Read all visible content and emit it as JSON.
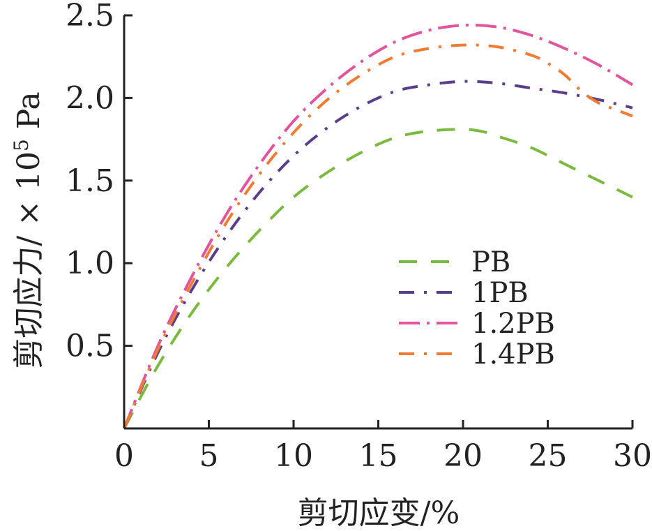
{
  "chart_data": {
    "type": "line",
    "xlabel": "剪切应变/%",
    "ylabel_main": "剪切应力/ × 10",
    "ylabel_exp": "5",
    "ylabel_unit": " Pa",
    "xlim": [
      0,
      30
    ],
    "ylim": [
      0,
      2.5
    ],
    "x_ticks": [
      "0",
      "5",
      "10",
      "15",
      "20",
      "25",
      "30"
    ],
    "y_ticks": [
      "0.5",
      "1.0",
      "1.5",
      "2.0",
      "2.5"
    ],
    "grid": false,
    "legend_position": "center-right",
    "series": [
      {
        "name": "PB",
        "color": "#7cba3f",
        "dash": "long-dash",
        "x": [
          0,
          2,
          4,
          6,
          8,
          10,
          12,
          14,
          16,
          18,
          20,
          21,
          22,
          24,
          26,
          28,
          30
        ],
        "y": [
          0,
          0.38,
          0.7,
          0.97,
          1.2,
          1.4,
          1.55,
          1.67,
          1.76,
          1.8,
          1.81,
          1.8,
          1.77,
          1.7,
          1.6,
          1.5,
          1.4
        ]
      },
      {
        "name": "1PB",
        "color": "#5a3e8c",
        "dash": "dash-dot",
        "x": [
          0,
          2,
          4,
          6,
          8,
          10,
          12,
          14,
          16,
          18,
          20,
          22,
          24,
          26,
          28,
          30
        ],
        "y": [
          0,
          0.46,
          0.84,
          1.16,
          1.43,
          1.65,
          1.82,
          1.95,
          2.04,
          2.08,
          2.1,
          2.09,
          2.06,
          2.03,
          1.99,
          1.94
        ]
      },
      {
        "name": "1.2PB",
        "color": "#e0559b",
        "dash": "long-dash-dot",
        "x": [
          0,
          2,
          4,
          6,
          8,
          10,
          12,
          14,
          16,
          18,
          20,
          22,
          24,
          26,
          28,
          30
        ],
        "y": [
          0,
          0.5,
          0.92,
          1.29,
          1.6,
          1.86,
          2.06,
          2.22,
          2.34,
          2.41,
          2.44,
          2.43,
          2.38,
          2.3,
          2.2,
          2.08
        ]
      },
      {
        "name": "1.4PB",
        "color": "#f07b32",
        "dash": "dash-dot",
        "x": [
          0,
          2,
          4,
          6,
          8,
          10,
          12,
          14,
          16,
          18,
          20,
          22,
          24,
          25,
          26,
          27,
          28,
          29,
          30
        ],
        "y": [
          0,
          0.48,
          0.88,
          1.24,
          1.54,
          1.79,
          1.99,
          2.14,
          2.25,
          2.3,
          2.32,
          2.31,
          2.26,
          2.21,
          2.14,
          2.04,
          1.97,
          1.93,
          1.89
        ]
      }
    ]
  }
}
